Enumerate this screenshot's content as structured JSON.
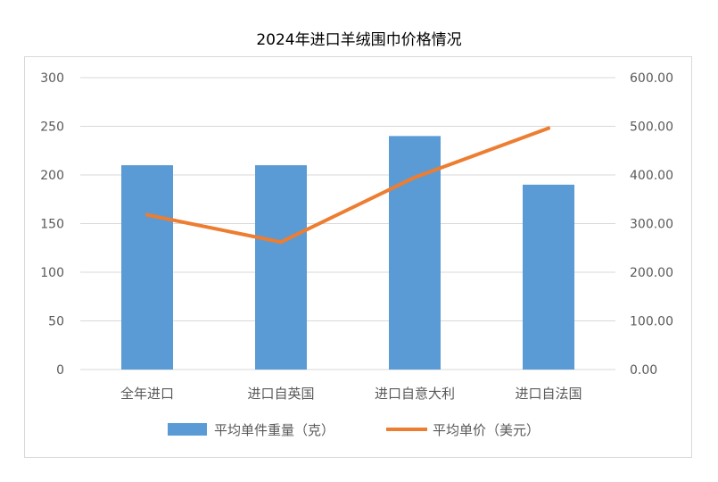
{
  "chart_data": {
    "type": "bar",
    "title": "2024年进口羊绒围巾价格情况",
    "categories": [
      "全年进口",
      "进口自英国",
      "进口自意大利",
      "进口自法国"
    ],
    "series": [
      {
        "name": "平均单件重量（克）",
        "type": "bar",
        "axis": "left",
        "color": "#5b9bd5",
        "values": [
          210,
          210,
          240,
          190
        ]
      },
      {
        "name": "平均单价（美元）",
        "type": "line",
        "axis": "right",
        "color": "#ed7d31",
        "values": [
          318,
          262,
          395,
          496
        ]
      }
    ],
    "y_left": {
      "ylim": [
        0,
        300
      ],
      "ticks": [
        "0",
        "50",
        "100",
        "150",
        "200",
        "250",
        "300"
      ]
    },
    "y_right": {
      "ylim": [
        0,
        600
      ],
      "ticks": [
        "0.00",
        "100.00",
        "200.00",
        "300.00",
        "400.00",
        "500.00",
        "600.00"
      ]
    },
    "grid": true,
    "legend": "bottom"
  }
}
